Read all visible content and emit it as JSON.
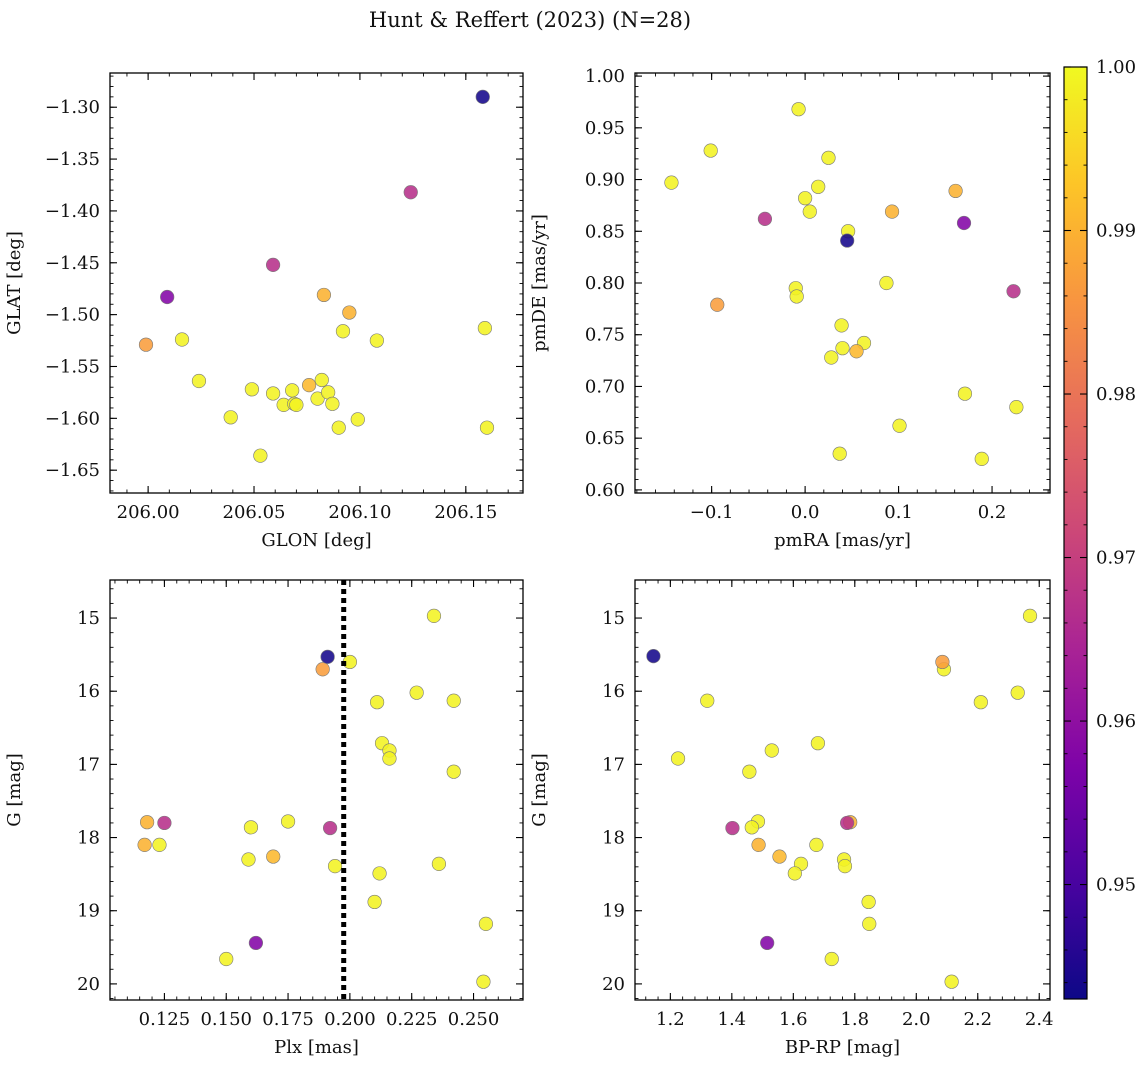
{
  "figure_title": "Hunt & Reffert (2023) (N=28)",
  "colorbar": {
    "min": 0.943,
    "max": 1.0,
    "ticks": [
      0.95,
      0.96,
      0.97,
      0.98,
      0.99,
      1.0
    ],
    "tick_labels": [
      "0.95",
      "0.96",
      "0.97",
      "0.98",
      "0.99",
      "1.00"
    ],
    "colormap": "plasma"
  },
  "chart_data": [
    {
      "type": "scatter",
      "name": "glon-glat",
      "xlabel": "GLON [deg]",
      "ylabel": "GLAT [deg]",
      "xlim": [
        205.982,
        206.177
      ],
      "ylim": [
        -1.672,
        -1.267
      ],
      "invert_y": false,
      "xticks": [
        206.0,
        206.05,
        206.1,
        206.15
      ],
      "xtick_labels": [
        "206.00",
        "206.05",
        "206.10",
        "206.15"
      ],
      "yticks": [
        -1.3,
        -1.35,
        -1.4,
        -1.45,
        -1.5,
        -1.55,
        -1.6,
        -1.65
      ],
      "ytick_labels": [
        "−1.30",
        "−1.35",
        "−1.40",
        "−1.45",
        "−1.50",
        "−1.55",
        "−1.60",
        "−1.65"
      ],
      "x": [
        206.158,
        206.124,
        206.009,
        206.059,
        206.083,
        206.095,
        205.999,
        206.016,
        206.159,
        206.092,
        206.108,
        206.16,
        206.024,
        206.039,
        206.049,
        206.059,
        206.064,
        206.068,
        206.069,
        206.07,
        206.076,
        206.08,
        206.082,
        206.085,
        206.087,
        206.09,
        206.099,
        206.053
      ],
      "y": [
        -1.29,
        -1.382,
        -1.483,
        -1.452,
        -1.481,
        -1.498,
        -1.529,
        -1.524,
        -1.513,
        -1.516,
        -1.525,
        -1.609,
        -1.564,
        -1.599,
        -1.572,
        -1.576,
        -1.587,
        -1.573,
        -1.586,
        -1.587,
        -1.568,
        -1.581,
        -1.563,
        -1.575,
        -1.586,
        -1.609,
        -1.601,
        -1.636
      ]
    },
    {
      "type": "scatter",
      "name": "pmra-pmde",
      "xlabel": "pmRA [mas/yr]",
      "ylabel": "pmDE [mas/yr]",
      "xlim": [
        -0.182,
        0.262
      ],
      "ylim": [
        0.597,
        1.003
      ],
      "invert_y": false,
      "xticks": [
        -0.1,
        0.0,
        0.1,
        0.2
      ],
      "xtick_labels": [
        "−0.1",
        "0.0",
        "0.1",
        "0.2"
      ],
      "yticks": [
        0.6,
        0.65,
        0.7,
        0.75,
        0.8,
        0.85,
        0.9,
        0.95,
        1.0
      ],
      "ytick_labels": [
        "0.60",
        "0.65",
        "0.70",
        "0.75",
        "0.80",
        "0.85",
        "0.90",
        "0.95",
        "1.00"
      ],
      "x": [
        0.045,
        0.223,
        0.17,
        -0.043,
        0.161,
        0.093,
        -0.094,
        -0.007,
        -0.101,
        -0.143,
        0.025,
        0.014,
        0.0,
        0.046,
        0.005,
        -0.01,
        -0.009,
        0.087,
        0.039,
        0.04,
        0.055,
        0.063,
        0.028,
        0.171,
        0.226,
        0.101,
        0.037,
        0.189
      ],
      "y": [
        0.841,
        0.792,
        0.858,
        0.862,
        0.889,
        0.869,
        0.779,
        0.968,
        0.928,
        0.897,
        0.921,
        0.893,
        0.882,
        0.85,
        0.869,
        0.795,
        0.787,
        0.8,
        0.759,
        0.737,
        0.734,
        0.742,
        0.728,
        0.693,
        0.68,
        0.662,
        0.635,
        0.63
      ]
    },
    {
      "type": "scatter",
      "name": "plx-g",
      "xlabel": "Plx [mas]",
      "ylabel": "G [mag]",
      "xlim": [
        0.103,
        0.27
      ],
      "ylim": [
        14.48,
        20.22
      ],
      "invert_y": true,
      "xticks": [
        0.125,
        0.15,
        0.175,
        0.2,
        0.225,
        0.25
      ],
      "xtick_labels": [
        "0.125",
        "0.150",
        "0.175",
        "0.200",
        "0.225",
        "0.250"
      ],
      "yticks": [
        15,
        16,
        17,
        18,
        19,
        20
      ],
      "ytick_labels": [
        "15",
        "16",
        "17",
        "18",
        "19",
        "20"
      ],
      "vline": {
        "x": 0.1975,
        "style": "dotted"
      },
      "x": [
        0.191,
        0.125,
        0.162,
        0.192,
        0.118,
        0.117,
        0.189,
        0.2,
        0.234,
        0.227,
        0.211,
        0.242,
        0.213,
        0.216,
        0.216,
        0.242,
        0.16,
        0.175,
        0.123,
        0.159,
        0.169,
        0.194,
        0.236,
        0.212,
        0.21,
        0.255,
        0.15,
        0.254
      ],
      "y": [
        15.53,
        17.8,
        19.44,
        17.87,
        17.79,
        18.1,
        15.7,
        15.6,
        14.97,
        16.02,
        16.15,
        16.13,
        16.71,
        16.81,
        16.92,
        17.1,
        17.86,
        17.78,
        18.1,
        18.3,
        18.26,
        18.39,
        18.36,
        18.49,
        18.88,
        19.18,
        19.66,
        19.97
      ]
    },
    {
      "type": "scatter",
      "name": "bprp-g",
      "xlabel": "BP-RP [mag]",
      "ylabel": "G [mag]",
      "xlim": [
        1.085,
        2.435
      ],
      "ylim": [
        14.48,
        20.22
      ],
      "invert_y": true,
      "xticks": [
        1.2,
        1.4,
        1.6,
        1.8,
        2.0,
        2.2,
        2.4
      ],
      "xtick_labels": [
        "1.2",
        "1.4",
        "1.6",
        "1.8",
        "2.0",
        "2.2",
        "2.4"
      ],
      "yticks": [
        15,
        16,
        17,
        18,
        19,
        20
      ],
      "ytick_labels": [
        "15",
        "16",
        "17",
        "18",
        "19",
        "20"
      ],
      "x": [
        1.145,
        1.775,
        1.515,
        1.402,
        1.785,
        1.487,
        2.085,
        2.09,
        2.37,
        2.33,
        2.21,
        1.32,
        1.68,
        1.53,
        1.225,
        1.457,
        1.485,
        1.465,
        1.675,
        1.765,
        1.555,
        1.768,
        1.625,
        1.605,
        1.845,
        1.847,
        1.725,
        2.115
      ],
      "y": [
        15.52,
        17.8,
        19.44,
        17.87,
        17.79,
        18.1,
        15.6,
        15.7,
        14.97,
        16.02,
        16.15,
        16.13,
        16.71,
        16.81,
        16.92,
        17.1,
        17.78,
        17.86,
        18.1,
        18.3,
        18.26,
        18.39,
        18.36,
        18.49,
        18.88,
        19.18,
        19.66,
        19.97
      ]
    }
  ],
  "membership_probability": [
    0.944,
    0.967,
    0.958,
    0.967,
    0.99,
    0.99,
    0.987,
    0.999,
    0.999,
    0.999,
    0.999,
    0.999,
    0.999,
    0.999,
    0.999,
    0.999,
    0.999,
    0.999,
    0.999,
    0.999,
    0.991,
    0.999,
    0.999,
    0.999,
    0.999,
    0.999,
    0.999,
    0.999
  ]
}
